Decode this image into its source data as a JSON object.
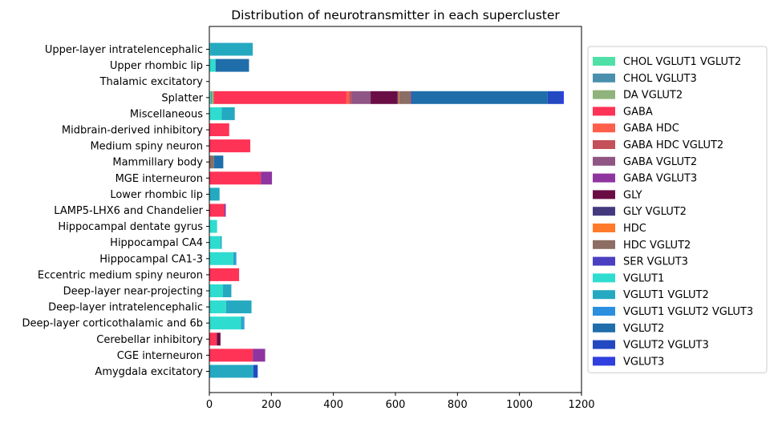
{
  "chart_data": {
    "type": "bar",
    "orientation": "horizontal",
    "stacked": true,
    "title": "Distribution of neurotransmitter in each supercluster",
    "xlabel": "",
    "ylabel": "",
    "xlim": [
      0,
      1200
    ],
    "xticks": [
      0,
      200,
      400,
      600,
      800,
      1000,
      1200
    ],
    "grid": false,
    "legend_position": "right",
    "categories": [
      "Upper-layer intratelencephalic",
      "Upper rhombic lip",
      "Thalamic excitatory",
      "Splatter",
      "Miscellaneous",
      "Midbrain-derived inhibitory",
      "Medium spiny neuron",
      "Mammillary body",
      "MGE interneuron",
      "Lower rhombic lip",
      "LAMP5-LHX6 and Chandelier",
      "Hippocampal dentate gyrus",
      "Hippocampal CA4",
      "Hippocampal CA1-3",
      "Eccentric medium spiny neuron",
      "Deep-layer near-projecting",
      "Deep-layer intratelencephalic",
      "Deep-layer corticothalamic and 6b",
      "Cerebellar inhibitory",
      "CGE interneuron",
      "Amygdala excitatory"
    ],
    "series": [
      {
        "name": "CHOL VGLUT1 VGLUT2",
        "color": "#4fe0a8",
        "values": [
          0,
          0,
          0,
          5,
          0,
          0,
          0,
          0,
          0,
          0,
          0,
          0,
          0,
          0,
          0,
          0,
          0,
          0,
          0,
          0,
          0
        ]
      },
      {
        "name": "CHOL VGLUT3",
        "color": "#4a8fae",
        "values": [
          0,
          0,
          0,
          3,
          0,
          0,
          0,
          0,
          0,
          0,
          0,
          0,
          0,
          0,
          0,
          0,
          0,
          0,
          0,
          0,
          0
        ]
      },
      {
        "name": "DA VGLUT2",
        "color": "#8fb37a",
        "values": [
          0,
          0,
          0,
          6,
          0,
          0,
          0,
          0,
          0,
          0,
          0,
          0,
          0,
          0,
          0,
          0,
          0,
          0,
          0,
          0,
          0
        ]
      },
      {
        "name": "GABA",
        "color": "#ff3355",
        "values": [
          0,
          0,
          0,
          427,
          0,
          64,
          132,
          0,
          166,
          0,
          48,
          0,
          0,
          0,
          96,
          0,
          0,
          0,
          24,
          140,
          0
        ]
      },
      {
        "name": "GABA HDC",
        "color": "#ff5e4a",
        "values": [
          0,
          0,
          0,
          10,
          0,
          0,
          0,
          0,
          0,
          0,
          0,
          0,
          0,
          0,
          0,
          0,
          0,
          0,
          0,
          0,
          0
        ]
      },
      {
        "name": "GABA HDC VGLUT2",
        "color": "#c4505a",
        "values": [
          0,
          0,
          0,
          7,
          0,
          0,
          0,
          0,
          0,
          0,
          0,
          0,
          0,
          0,
          0,
          0,
          0,
          0,
          0,
          0,
          0
        ]
      },
      {
        "name": "GABA VGLUT2",
        "color": "#8f5584",
        "values": [
          0,
          0,
          0,
          62,
          0,
          0,
          0,
          0,
          0,
          0,
          0,
          0,
          0,
          0,
          0,
          0,
          0,
          0,
          0,
          0,
          0
        ]
      },
      {
        "name": "GABA VGLUT3",
        "color": "#8e35a0",
        "values": [
          0,
          0,
          0,
          0,
          0,
          0,
          0,
          0,
          36,
          0,
          5,
          0,
          0,
          0,
          0,
          0,
          0,
          0,
          0,
          40,
          0
        ]
      },
      {
        "name": "GLY",
        "color": "#6b0d45",
        "values": [
          0,
          0,
          0,
          86,
          0,
          0,
          0,
          0,
          0,
          0,
          0,
          0,
          0,
          0,
          0,
          0,
          0,
          0,
          12,
          0,
          0
        ]
      },
      {
        "name": "GLY VGLUT2",
        "color": "#433a7e",
        "values": [
          0,
          0,
          0,
          3,
          0,
          0,
          0,
          0,
          0,
          0,
          0,
          0,
          0,
          0,
          0,
          0,
          0,
          0,
          0,
          0,
          0
        ]
      },
      {
        "name": "HDC",
        "color": "#ff7a2a",
        "values": [
          0,
          0,
          0,
          3,
          0,
          0,
          0,
          0,
          0,
          0,
          0,
          0,
          0,
          0,
          0,
          0,
          0,
          0,
          0,
          0,
          0
        ]
      },
      {
        "name": "HDC VGLUT2",
        "color": "#8c6e64",
        "values": [
          0,
          0,
          0,
          38,
          0,
          0,
          0,
          15,
          0,
          0,
          0,
          0,
          0,
          0,
          0,
          0,
          0,
          0,
          0,
          0,
          0
        ]
      },
      {
        "name": "SER VGLUT3",
        "color": "#4a3fc0",
        "values": [
          0,
          0,
          0,
          3,
          0,
          0,
          0,
          0,
          0,
          0,
          0,
          0,
          0,
          0,
          0,
          0,
          0,
          0,
          0,
          0,
          0
        ]
      },
      {
        "name": "VGLUT1",
        "color": "#2fdcd0",
        "values": [
          3,
          20,
          0,
          0,
          40,
          0,
          0,
          0,
          0,
          0,
          0,
          25,
          36,
          77,
          0,
          44,
          54,
          102,
          0,
          0,
          0
        ]
      },
      {
        "name": "VGLUT1 VGLUT2",
        "color": "#24a9c0",
        "values": [
          137,
          0,
          0,
          0,
          42,
          0,
          0,
          0,
          0,
          33,
          0,
          0,
          4,
          6,
          0,
          27,
          82,
          7,
          0,
          0,
          142
        ]
      },
      {
        "name": "VGLUT1 VGLUT2 VGLUT3",
        "color": "#2b8fe0",
        "values": [
          0,
          0,
          0,
          0,
          0,
          0,
          0,
          0,
          0,
          0,
          0,
          0,
          0,
          4,
          0,
          0,
          0,
          4,
          0,
          0,
          0
        ]
      },
      {
        "name": "VGLUT2",
        "color": "#1f6eaa",
        "values": [
          0,
          108,
          0,
          438,
          0,
          0,
          0,
          30,
          0,
          0,
          0,
          0,
          0,
          0,
          0,
          0,
          0,
          0,
          0,
          0,
          0
        ]
      },
      {
        "name": "VGLUT2 VGLUT3",
        "color": "#2249c2",
        "values": [
          0,
          0,
          0,
          43,
          0,
          0,
          0,
          0,
          0,
          0,
          0,
          0,
          0,
          0,
          0,
          0,
          0,
          0,
          0,
          0,
          14
        ]
      },
      {
        "name": "VGLUT3",
        "color": "#2f3fe0",
        "values": [
          0,
          0,
          0,
          9,
          0,
          0,
          0,
          0,
          0,
          0,
          0,
          0,
          0,
          0,
          0,
          0,
          0,
          0,
          0,
          0,
          0
        ]
      }
    ]
  }
}
